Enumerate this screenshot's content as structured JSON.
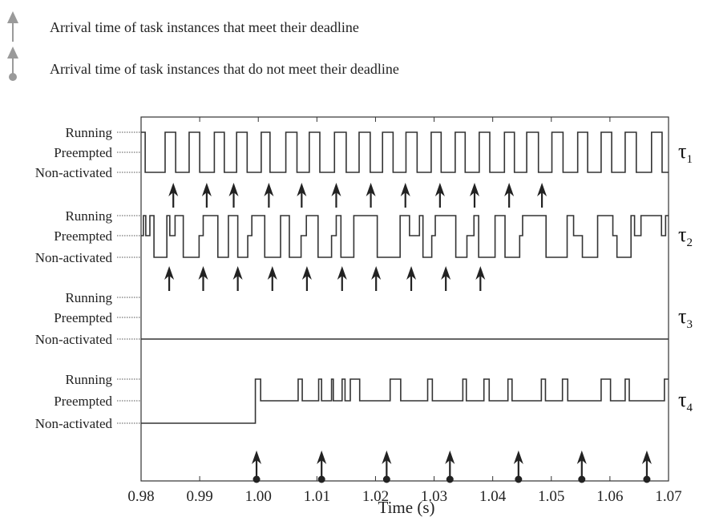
{
  "legend": {
    "meet_text": "Arrival time of task instances that meet their deadline",
    "miss_text": "Arrival time of task instances that do not meet their deadline",
    "meet_icon": "arrow-up-icon",
    "miss_icon": "arrow-up-with-dot-icon",
    "meet_color": "#9a9a9a",
    "miss_color": "#9a9a9a"
  },
  "chart_data": {
    "type": "step",
    "xlabel": "Time (s)",
    "xlim": [
      0.98,
      1.07
    ],
    "x_ticks": [
      "0.98",
      "0.99",
      "1.00",
      "1.01",
      "1.02",
      "1.03",
      "1.04",
      "1.05",
      "1.06",
      "1.07"
    ],
    "state_labels": [
      "Running",
      "Preempted",
      "Non-activated"
    ],
    "line_color": "#333333",
    "arrow_color": "#222222",
    "tasks": [
      {
        "name": "τ1",
        "name_base": "τ",
        "name_sub": "1",
        "steps": [
          [
            0.98,
            "R"
          ],
          [
            0.9807,
            "N"
          ],
          [
            0.9841,
            "R"
          ],
          [
            0.9859,
            "N"
          ],
          [
            0.9882,
            "R"
          ],
          [
            0.99,
            "N"
          ],
          [
            0.9925,
            "R"
          ],
          [
            0.9942,
            "N"
          ],
          [
            0.9963,
            "R"
          ],
          [
            0.9981,
            "N"
          ],
          [
            1.0005,
            "R"
          ],
          [
            1.002,
            "N"
          ],
          [
            1.0047,
            "R"
          ],
          [
            1.0066,
            "N"
          ],
          [
            1.0087,
            "R"
          ],
          [
            1.0105,
            "N"
          ],
          [
            1.013,
            "R"
          ],
          [
            1.015,
            "N"
          ],
          [
            1.0172,
            "R"
          ],
          [
            1.0191,
            "N"
          ],
          [
            1.0212,
            "R"
          ],
          [
            1.023,
            "N"
          ],
          [
            1.0252,
            "R"
          ],
          [
            1.0271,
            "N"
          ],
          [
            1.0295,
            "R"
          ],
          [
            1.0312,
            "N"
          ],
          [
            1.0336,
            "R"
          ],
          [
            1.0353,
            "N"
          ],
          [
            1.0377,
            "R"
          ],
          [
            1.0395,
            "N"
          ],
          [
            1.042,
            "R"
          ],
          [
            1.0437,
            "N"
          ],
          [
            1.0458,
            "R"
          ],
          [
            1.0478,
            "N"
          ],
          [
            1.0501,
            "R"
          ],
          [
            1.052,
            "N"
          ],
          [
            1.0545,
            "R"
          ],
          [
            1.0562,
            "N"
          ],
          [
            1.0585,
            "R"
          ],
          [
            1.0603,
            "N"
          ],
          [
            1.0626,
            "R"
          ],
          [
            1.0645,
            "N"
          ],
          [
            1.0671,
            "R"
          ],
          [
            1.0689,
            "N"
          ],
          [
            1.07,
            "N"
          ]
        ],
        "arrivals_met": [
          0.9855,
          0.9912,
          0.9958,
          1.0018,
          1.0074,
          1.0133,
          1.0192,
          1.0251,
          1.031,
          1.0369,
          1.0428,
          1.0484
        ],
        "arrivals_missed": []
      },
      {
        "name": "τ2",
        "name_base": "τ",
        "name_sub": "2",
        "steps": [
          [
            0.98,
            "P"
          ],
          [
            0.9804,
            "R"
          ],
          [
            0.9808,
            "P"
          ],
          [
            0.9815,
            "R"
          ],
          [
            0.9822,
            "N"
          ],
          [
            0.9844,
            "R"
          ],
          [
            0.9849,
            "P"
          ],
          [
            0.9858,
            "R"
          ],
          [
            0.9872,
            "N"
          ],
          [
            0.9899,
            "P"
          ],
          [
            0.9906,
            "R"
          ],
          [
            0.9931,
            "N"
          ],
          [
            0.9949,
            "R"
          ],
          [
            0.9965,
            "N"
          ],
          [
            0.9982,
            "P"
          ],
          [
            0.9989,
            "R"
          ],
          [
            1.0011,
            "N"
          ],
          [
            1.0038,
            "R"
          ],
          [
            1.0053,
            "N"
          ],
          [
            1.0073,
            "P"
          ],
          [
            1.0082,
            "R"
          ],
          [
            1.0102,
            "N"
          ],
          [
            1.0125,
            "P"
          ],
          [
            1.0133,
            "R"
          ],
          [
            1.0141,
            "N"
          ],
          [
            1.0163,
            "R"
          ],
          [
            1.0203,
            "N"
          ],
          [
            1.0242,
            "R"
          ],
          [
            1.0258,
            "P"
          ],
          [
            1.0275,
            "R"
          ],
          [
            1.0281,
            "N"
          ],
          [
            1.0296,
            "P"
          ],
          [
            1.0302,
            "R"
          ],
          [
            1.0337,
            "N"
          ],
          [
            1.0356,
            "P"
          ],
          [
            1.0368,
            "R"
          ],
          [
            1.0376,
            "N"
          ],
          [
            1.0404,
            "R"
          ],
          [
            1.0421,
            "N"
          ],
          [
            1.0446,
            "P"
          ],
          [
            1.0451,
            "R"
          ],
          [
            1.0491,
            "N"
          ],
          [
            1.0527,
            "R"
          ],
          [
            1.0538,
            "P"
          ],
          [
            1.0553,
            "N"
          ],
          [
            1.0579,
            "R"
          ],
          [
            1.0605,
            "P"
          ],
          [
            1.0612,
            "N"
          ],
          [
            1.0636,
            "R"
          ],
          [
            1.0642,
            "P"
          ],
          [
            1.0653,
            "R"
          ],
          [
            1.0688,
            "P"
          ],
          [
            1.0695,
            "R"
          ],
          [
            1.07,
            "R"
          ]
        ],
        "arrivals_met": [
          0.9848,
          0.9906,
          0.9965,
          1.0024,
          1.0083,
          1.0143,
          1.0201,
          1.0261,
          1.032,
          1.0379
        ],
        "arrivals_missed": []
      },
      {
        "name": "τ3",
        "name_base": "τ",
        "name_sub": "3",
        "steps": [
          [
            0.98,
            "N"
          ],
          [
            1.07,
            "N"
          ]
        ],
        "arrivals_met": [],
        "arrivals_missed": []
      },
      {
        "name": "τ4",
        "name_base": "τ",
        "name_sub": "4",
        "steps": [
          [
            0.98,
            "N"
          ],
          [
            0.9995,
            "R"
          ],
          [
            1.0004,
            "P"
          ],
          [
            1.0068,
            "R"
          ],
          [
            1.0075,
            "P"
          ],
          [
            1.0103,
            "R"
          ],
          [
            1.0108,
            "P"
          ],
          [
            1.0125,
            "R"
          ],
          [
            1.0128,
            "P"
          ],
          [
            1.0143,
            "R"
          ],
          [
            1.0148,
            "P"
          ],
          [
            1.0157,
            "R"
          ],
          [
            1.0173,
            "P"
          ],
          [
            1.0225,
            "R"
          ],
          [
            1.0243,
            "P"
          ],
          [
            1.0289,
            "R"
          ],
          [
            1.0297,
            "P"
          ],
          [
            1.0349,
            "R"
          ],
          [
            1.0355,
            "P"
          ],
          [
            1.0385,
            "R"
          ],
          [
            1.0394,
            "P"
          ],
          [
            1.0426,
            "R"
          ],
          [
            1.0433,
            "P"
          ],
          [
            1.0483,
            "R"
          ],
          [
            1.049,
            "P"
          ],
          [
            1.0519,
            "R"
          ],
          [
            1.0528,
            "P"
          ],
          [
            1.0585,
            "R"
          ],
          [
            1.0601,
            "P"
          ],
          [
            1.0626,
            "R"
          ],
          [
            1.0633,
            "P"
          ],
          [
            1.0693,
            "R"
          ],
          [
            1.07,
            "R"
          ]
        ],
        "arrivals_met": [],
        "arrivals_missed": [
          0.9997,
          1.0108,
          1.0219,
          1.0327,
          1.0444,
          1.0552,
          1.0663
        ]
      }
    ]
  }
}
